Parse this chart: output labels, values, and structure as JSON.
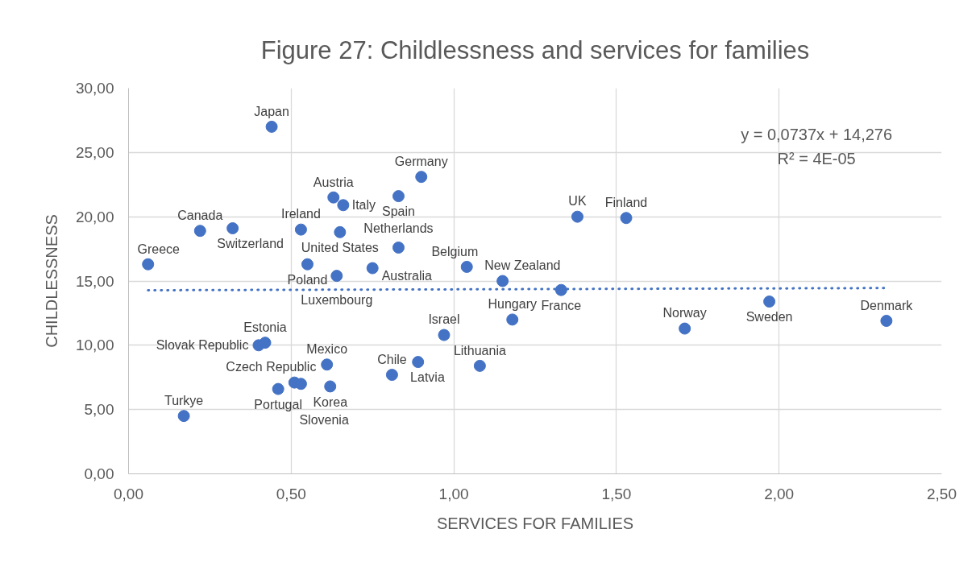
{
  "chart_data": {
    "type": "scatter",
    "title": "Figure 27: Childlessness and services for families",
    "xlabel": "SERVICES FOR FAMILIES",
    "ylabel": "CHILDLESSNESS",
    "annotations": [
      "y = 0,0737x + 14,276",
      "R² = 4E-05"
    ],
    "xlim": [
      0,
      2.5
    ],
    "ylim": [
      0,
      30
    ],
    "xticks": [
      {
        "value": 0,
        "label": "0,00"
      },
      {
        "value": 0.5,
        "label": "0,50"
      },
      {
        "value": 1,
        "label": "1,00"
      },
      {
        "value": 1.5,
        "label": "1,50"
      },
      {
        "value": 2,
        "label": "2,00"
      },
      {
        "value": 2.5,
        "label": "2,50"
      }
    ],
    "yticks": [
      {
        "value": 0,
        "label": "0,00"
      },
      {
        "value": 5,
        "label": "5,00"
      },
      {
        "value": 10,
        "label": "10,00"
      },
      {
        "value": 15,
        "label": "15,00"
      },
      {
        "value": 20,
        "label": "20,00"
      },
      {
        "value": 25,
        "label": "25,00"
      },
      {
        "value": 30,
        "label": "30,00"
      }
    ],
    "grid": true,
    "marker": "circle",
    "series": [
      {
        "color": "#4472c4",
        "x": [
          0.06,
          0.17,
          0.22,
          0.32,
          0.4,
          0.42,
          0.44,
          0.46,
          0.51,
          0.53,
          0.53,
          0.55,
          0.61,
          0.62,
          0.63,
          0.64,
          0.65,
          0.66,
          0.75,
          0.81,
          0.83,
          0.83,
          0.89,
          0.9,
          0.97,
          1.04,
          1.08,
          1.15,
          1.18,
          1.33,
          1.38,
          1.53,
          1.71,
          1.97,
          2.33
        ],
        "values": [
          16.3,
          4.5,
          18.9,
          19.1,
          10.0,
          10.2,
          27.0,
          6.6,
          7.1,
          19.0,
          7.0,
          16.3,
          8.5,
          6.8,
          21.5,
          15.4,
          18.8,
          20.9,
          16.0,
          7.7,
          21.6,
          17.6,
          8.7,
          23.1,
          10.8,
          16.1,
          8.4,
          15.0,
          12.0,
          14.3,
          20.0,
          19.9,
          11.3,
          13.4,
          11.9
        ],
        "value_labels": [
          "Greece",
          "Turkye",
          "Canada",
          "Switzerland",
          "Slovak Republic",
          "Estonia",
          "Japan",
          "Portugal",
          "Czech Republic",
          "Ireland",
          "Slovenia",
          "Poland",
          "Mexico",
          "Korea",
          "Austria",
          "Luxembourg",
          "United States",
          "Italy",
          "Australia",
          "Chile",
          "Spain",
          "Netherlands",
          "Latvia",
          "Germany",
          "Israel",
          "Belgium",
          "Lithuania",
          "New Zealand",
          "Hungary",
          "France",
          "UK",
          "Finland",
          "Norway",
          "Sweden",
          "Denmark"
        ]
      },
      {
        "type": "line",
        "color": "#4472c4",
        "x": [
          0.06,
          2.33
        ],
        "values": [
          14.28,
          14.45
        ],
        "line_style": "dotted",
        "marker": "none"
      }
    ]
  }
}
